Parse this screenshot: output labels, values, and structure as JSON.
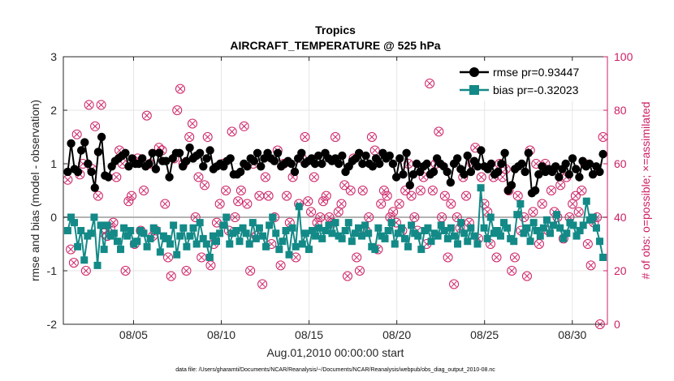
{
  "chart_data": {
    "type": "line",
    "title": "Tropics",
    "subtitle": "AIRCRAFT_TEMPERATURE @ 525 hPa",
    "xlabel": "Aug.01,2010 00:00:00 start",
    "ylabel": "rmse and bias (model - observation)",
    "y2label": "# of obs: o=possible; ×=assimilated",
    "footnote": "data file: /Users/gharamti/Documents/NCAR/Reanalysis/~/Documents/NCAR/Reanalysis/webpub/obs_diag_output_2010-08.nc",
    "x_range_days": [
      1.0,
      32.0
    ],
    "ylim": [
      -2,
      3
    ],
    "y2lim": [
      0,
      100
    ],
    "x_ticks": [
      {
        "day": 5,
        "label": "08/05"
      },
      {
        "day": 10,
        "label": "08/10"
      },
      {
        "day": 15,
        "label": "08/15"
      },
      {
        "day": 20,
        "label": "08/20"
      },
      {
        "day": 25,
        "label": "08/25"
      },
      {
        "day": 30,
        "label": "08/30"
      }
    ],
    "y_ticks": [
      -2,
      -1,
      0,
      1,
      2,
      3
    ],
    "y2_ticks": [
      0,
      20,
      40,
      60,
      80,
      100
    ],
    "grid": true,
    "legend_position": "top-right",
    "colors": {
      "rmse": "#000000",
      "bias": "#138a87",
      "obs": "#cc1f64",
      "zero_line": "#b3b3b3",
      "axis": "#262626"
    },
    "series": [
      {
        "name": "rmse pr=0.93447",
        "axis": "left",
        "marker": "circle",
        "values": [
          0.85,
          1.38,
          0.9,
          0.85,
          1.25,
          1.4,
          1.0,
          0.85,
          0.55,
          1.22,
          1.5,
          0.78,
          0.75,
          0.95,
          1.05,
          1.1,
          1.15,
          1.2,
          0.95,
          1.1,
          1.0,
          1.0,
          1.1,
          0.95,
          1.0,
          1.2,
          0.9,
          1.2,
          1.05,
          1.05,
          0.75,
          1.1,
          1.2,
          1.2,
          0.95,
          1.05,
          1.3,
          1.1,
          1.15,
          1.2,
          0.95,
          1.1,
          1.25,
          0.9,
          0.95,
          1.0,
          0.95,
          1.05,
          1.1,
          0.8,
          0.8,
          0.85,
          1.0,
          0.95,
          1.1,
          1.05,
          1.2,
          0.95,
          1.1,
          1.2,
          1.1,
          1.05,
          1.2,
          0.95,
          1.0,
          1.05,
          1.0,
          0.85,
          1.1,
          1.2,
          1.0,
          1.05,
          1.1,
          1.0,
          1.15,
          1.0,
          1.2,
          1.1,
          1.05,
          1.1,
          1.0,
          1.15,
          0.85,
          0.95,
          1.05,
          1.1,
          1.2,
          1.0,
          1.15,
          1.0,
          0.95,
          1.1,
          1.0,
          1.2,
          1.1,
          1.15,
          1.0,
          0.75,
          1.1,
          0.8,
          1.2,
          0.6,
          0.8,
          1.0,
          0.85,
          0.95,
          1.0,
          0.8,
          0.85,
          1.1,
          1.0,
          0.95,
          0.85,
          0.65,
          1.0,
          1.1,
          0.9,
          0.8,
          1.15,
          0.85,
          1.05,
          0.95,
          1.25,
          0.95,
          0.9,
          1.0,
          0.8,
          0.85,
          1.0,
          1.2,
          0.5,
          0.6,
          0.9,
          0.95,
          1.0,
          0.85,
          1.2,
          0.45,
          0.5,
          0.8,
          0.95,
          0.85,
          0.9,
          0.85,
          0.95,
          0.75,
          0.9,
          1.0,
          0.8,
          1.1,
          0.9,
          0.75,
          1.05,
          0.95,
          1.0,
          0.8,
          0.95,
          0.85,
          1.18
        ]
      },
      {
        "name": "bias pr=-0.32023",
        "axis": "left",
        "marker": "square",
        "values": [
          -0.25,
          0.0,
          -0.1,
          -0.55,
          -0.25,
          -0.8,
          -0.35,
          -0.3,
          0.0,
          -0.9,
          -0.15,
          -0.6,
          -0.15,
          -0.35,
          -0.3,
          -0.45,
          -0.6,
          -0.2,
          -0.35,
          -0.25,
          -0.5,
          -0.45,
          -0.25,
          -0.3,
          -0.55,
          -0.4,
          -0.2,
          -0.25,
          -0.65,
          -0.35,
          -0.4,
          -0.5,
          -0.15,
          -0.7,
          -0.35,
          -0.2,
          -0.55,
          -0.35,
          -0.2,
          -0.5,
          -0.1,
          -0.4,
          -0.5,
          -0.75,
          -0.35,
          -0.45,
          -0.3,
          -0.15,
          0.0,
          -0.5,
          -0.3,
          -0.25,
          -0.45,
          -0.2,
          -0.3,
          -0.5,
          -0.1,
          -0.4,
          -0.2,
          -0.35,
          -0.55,
          -0.15,
          0.0,
          -0.3,
          -0.6,
          -0.45,
          -0.25,
          -0.7,
          -0.2,
          -0.55,
          0.2,
          -0.5,
          -0.3,
          -0.6,
          -0.25,
          -0.35,
          -0.2,
          -0.4,
          -0.25,
          -0.15,
          -0.3,
          -0.1,
          -0.35,
          -0.4,
          -0.25,
          -0.1,
          -0.45,
          -0.3,
          -0.2,
          -0.35,
          -0.15,
          -0.3,
          -0.55,
          -0.6,
          -0.2,
          -0.35,
          -0.4,
          -0.25,
          -0.1,
          -0.5,
          -0.3,
          -0.2,
          -0.4,
          -0.55,
          -0.15,
          -0.3,
          -0.35,
          -0.6,
          -0.25,
          -0.2,
          -0.45,
          -0.3,
          -0.35,
          -0.15,
          -0.25,
          -0.4,
          -0.2,
          -0.35,
          -0.5,
          -0.1,
          -0.3,
          -0.45,
          -0.2,
          -0.35,
          -0.5,
          0.55,
          -0.2,
          -0.4,
          0.0,
          -0.3,
          -0.25,
          -0.35,
          -0.1,
          -0.2,
          -0.4,
          -0.45,
          0.05,
          0.25,
          -0.3,
          -0.2,
          -0.45,
          -0.1,
          -0.25,
          -0.35,
          -0.2,
          -0.05,
          -0.3,
          -0.15,
          0.05,
          -0.2,
          -0.4,
          -0.3,
          -0.1,
          -0.15,
          -0.35,
          -0.25,
          -0.15,
          0.3,
          -0.05,
          0.0,
          -0.2,
          -0.45,
          -0.75
        ]
      },
      {
        "name": "obs possible",
        "axis": "right",
        "marker": "circle-open",
        "values": [
          54,
          28,
          23,
          71,
          56,
          60,
          20,
          82,
          58,
          74,
          48,
          82,
          34,
          33,
          36,
          38,
          55,
          65,
          60,
          20,
          46,
          48,
          30,
          62,
          35,
          50,
          78,
          60,
          33,
          35,
          66,
          65,
          45,
          25,
          18,
          62,
          80,
          88,
          60,
          20,
          70,
          75,
          40,
          55,
          25,
          52,
          70,
          22,
          30,
          38,
          45,
          60,
          50,
          35,
          72,
          40,
          46,
          50,
          74,
          45,
          20,
          60,
          33,
          48,
          15,
          55,
          48,
          30,
          40,
          65,
          22,
          60,
          48,
          38,
          55,
          25,
          45,
          62,
          70,
          46,
          42,
          55,
          38,
          40,
          46,
          48,
          40,
          38,
          70,
          42,
          45,
          52,
          18,
          50,
          62,
          25,
          20,
          50,
          35,
          40,
          70,
          65,
          28,
          45,
          50,
          48,
          40,
          42,
          38,
          45,
          35,
          50,
          60,
          48,
          40,
          35,
          50,
          55,
          30,
          90,
          50,
          60,
          72,
          40,
          48,
          25,
          45,
          15,
          40,
          36,
          55,
          48,
          38,
          60,
          66,
          32,
          55,
          45,
          42,
          30,
          55,
          25,
          60,
          55,
          58,
          50,
          20,
          25,
          48,
          35,
          40,
          18,
          65,
          42,
          60,
          30,
          45,
          60,
          35,
          50,
          42,
          40,
          52,
          32,
          55,
          40,
          45,
          48,
          42,
          50,
          60,
          30,
          22,
          38,
          40,
          0,
          70
        ]
      },
      {
        "name": "obs assimilated",
        "axis": "right",
        "marker": "x",
        "values": [
          54,
          28,
          23,
          71,
          56,
          60,
          20,
          82,
          58,
          74,
          48,
          82,
          34,
          33,
          36,
          38,
          55,
          65,
          60,
          20,
          46,
          48,
          30,
          62,
          35,
          50,
          78,
          60,
          33,
          35,
          66,
          65,
          45,
          25,
          18,
          62,
          80,
          88,
          60,
          20,
          70,
          75,
          40,
          55,
          25,
          52,
          70,
          22,
          30,
          38,
          45,
          60,
          50,
          35,
          72,
          40,
          46,
          50,
          74,
          45,
          20,
          60,
          33,
          48,
          15,
          55,
          48,
          30,
          40,
          65,
          22,
          60,
          48,
          38,
          55,
          25,
          45,
          62,
          70,
          46,
          42,
          55,
          38,
          40,
          46,
          48,
          40,
          38,
          70,
          42,
          45,
          52,
          18,
          50,
          62,
          25,
          20,
          50,
          35,
          40,
          70,
          65,
          28,
          45,
          50,
          48,
          40,
          42,
          38,
          45,
          35,
          50,
          60,
          48,
          40,
          35,
          50,
          55,
          30,
          90,
          50,
          60,
          72,
          40,
          48,
          25,
          45,
          15,
          40,
          36,
          55,
          48,
          38,
          60,
          66,
          32,
          55,
          45,
          42,
          30,
          55,
          25,
          60,
          55,
          58,
          50,
          20,
          25,
          48,
          35,
          40,
          18,
          65,
          42,
          60,
          30,
          45,
          60,
          35,
          50,
          42,
          40,
          52,
          32,
          55,
          40,
          45,
          48,
          42,
          50,
          60,
          30,
          22,
          38,
          40,
          0,
          70
        ]
      }
    ]
  }
}
